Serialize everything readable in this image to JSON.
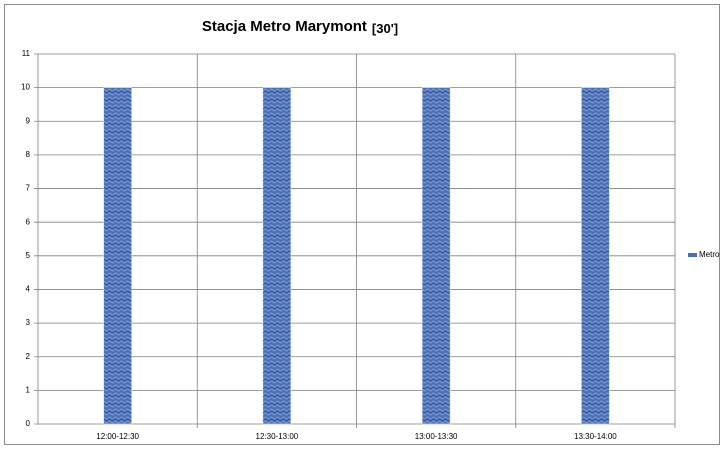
{
  "chart_data": {
    "type": "bar",
    "title": "Stacja Metro Marymont",
    "subtitle": "[30']",
    "categories": [
      "12:00-12:30",
      "12:30-13:00",
      "13:00-13:30",
      "13:30-14:00"
    ],
    "series": [
      {
        "name": "Metro",
        "color": "#4a6fb3",
        "values": [
          10,
          10,
          10,
          10
        ]
      }
    ],
    "ylim": [
      0,
      11
    ],
    "yticks": [
      0,
      1,
      2,
      3,
      4,
      5,
      6,
      7,
      8,
      9,
      10,
      11
    ],
    "grid": true,
    "legend": "right"
  }
}
